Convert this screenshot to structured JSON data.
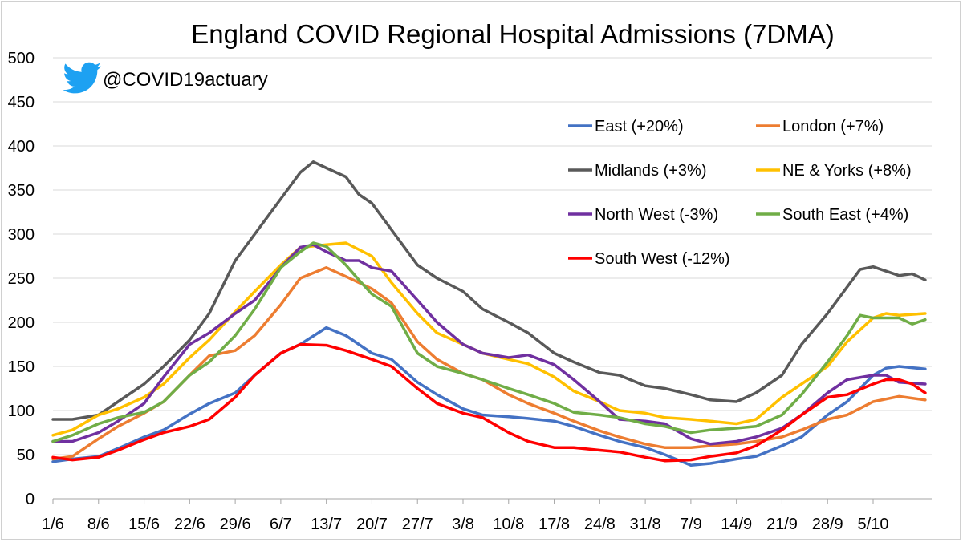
{
  "chart_data": {
    "type": "line",
    "title": "England COVID Regional Hospital Admissions (7DMA)",
    "handle": "@COVID19actuary",
    "xlabel": "",
    "ylabel": "",
    "ylim": [
      0,
      500
    ],
    "yticks": [
      0,
      50,
      100,
      150,
      200,
      250,
      300,
      350,
      400,
      450,
      500
    ],
    "grid": true,
    "legend_position": "top-right",
    "x_range": [
      0,
      135
    ],
    "x_tick_labels": [
      {
        "label": "1/6",
        "day": 0
      },
      {
        "label": "8/6",
        "day": 7
      },
      {
        "label": "15/6",
        "day": 14
      },
      {
        "label": "22/6",
        "day": 21
      },
      {
        "label": "29/6",
        "day": 28
      },
      {
        "label": "6/7",
        "day": 35
      },
      {
        "label": "13/7",
        "day": 42
      },
      {
        "label": "20/7",
        "day": 49
      },
      {
        "label": "27/7",
        "day": 56
      },
      {
        "label": "3/8",
        "day": 63
      },
      {
        "label": "10/8",
        "day": 70
      },
      {
        "label": "17/8",
        "day": 77
      },
      {
        "label": "24/8",
        "day": 84
      },
      {
        "label": "31/8",
        "day": 91
      },
      {
        "label": "7/9",
        "day": 98
      },
      {
        "label": "14/9",
        "day": 105
      },
      {
        "label": "21/9",
        "day": 112
      },
      {
        "label": "28/9",
        "day": 119
      },
      {
        "label": "5/10",
        "day": 126
      }
    ],
    "series": [
      {
        "name": "East (+20%)",
        "color": "#4472C4",
        "x": [
          0,
          3,
          7,
          10,
          14,
          17,
          21,
          24,
          28,
          31,
          35,
          38,
          42,
          45,
          49,
          52,
          56,
          59,
          63,
          66,
          70,
          73,
          77,
          80,
          84,
          87,
          91,
          94,
          98,
          101,
          105,
          108,
          112,
          115,
          119,
          122,
          126,
          128,
          130,
          134
        ],
        "y": [
          42,
          45,
          48,
          57,
          70,
          78,
          96,
          108,
          120,
          140,
          165,
          175,
          194,
          185,
          165,
          158,
          132,
          118,
          102,
          95,
          93,
          91,
          88,
          82,
          72,
          65,
          58,
          50,
          38,
          40,
          45,
          48,
          60,
          70,
          95,
          110,
          140,
          148,
          150,
          147
        ]
      },
      {
        "name": "London (+7%)",
        "color": "#ED7D31",
        "x": [
          0,
          3,
          7,
          10,
          14,
          17,
          21,
          24,
          28,
          31,
          35,
          38,
          42,
          45,
          49,
          52,
          56,
          59,
          63,
          66,
          70,
          73,
          77,
          80,
          84,
          87,
          91,
          94,
          98,
          101,
          105,
          108,
          112,
          115,
          119,
          122,
          126,
          128,
          130,
          134
        ],
        "y": [
          45,
          48,
          68,
          82,
          97,
          110,
          140,
          162,
          168,
          185,
          220,
          250,
          262,
          252,
          238,
          222,
          178,
          158,
          142,
          135,
          118,
          108,
          97,
          88,
          77,
          70,
          62,
          58,
          58,
          60,
          62,
          65,
          70,
          78,
          90,
          95,
          110,
          113,
          116,
          112
        ]
      },
      {
        "name": "Midlands (+3%)",
        "color": "#595959",
        "x": [
          0,
          3,
          7,
          10,
          14,
          17,
          21,
          24,
          28,
          31,
          35,
          38,
          40,
          42,
          45,
          47,
          49,
          52,
          56,
          59,
          63,
          66,
          70,
          73,
          77,
          80,
          84,
          87,
          91,
          94,
          98,
          101,
          105,
          108,
          112,
          115,
          119,
          122,
          124,
          126,
          128,
          130,
          132,
          134
        ],
        "y": [
          90,
          90,
          95,
          110,
          130,
          150,
          180,
          210,
          270,
          300,
          340,
          370,
          382,
          375,
          365,
          345,
          335,
          305,
          265,
          250,
          235,
          215,
          200,
          188,
          165,
          155,
          143,
          140,
          128,
          125,
          118,
          112,
          110,
          120,
          140,
          175,
          210,
          240,
          260,
          263,
          258,
          253,
          255,
          248
        ]
      },
      {
        "name": "NE & Yorks (+8%)",
        "color": "#FFC000",
        "x": [
          0,
          3,
          7,
          10,
          14,
          17,
          21,
          24,
          28,
          31,
          35,
          38,
          42,
          45,
          49,
          52,
          56,
          59,
          63,
          66,
          70,
          73,
          77,
          80,
          84,
          87,
          91,
          94,
          98,
          101,
          105,
          108,
          112,
          115,
          119,
          122,
          126,
          128,
          130,
          134
        ],
        "y": [
          72,
          78,
          95,
          102,
          115,
          130,
          160,
          180,
          212,
          235,
          265,
          285,
          288,
          290,
          275,
          245,
          210,
          188,
          175,
          165,
          158,
          153,
          138,
          122,
          110,
          100,
          97,
          92,
          90,
          88,
          85,
          90,
          115,
          130,
          150,
          178,
          205,
          210,
          208,
          210
        ]
      },
      {
        "name": "North West (-3%)",
        "color": "#7030A0",
        "x": [
          0,
          3,
          7,
          10,
          14,
          17,
          21,
          24,
          28,
          31,
          35,
          38,
          40,
          42,
          45,
          47,
          49,
          52,
          56,
          59,
          63,
          66,
          70,
          73,
          77,
          80,
          84,
          87,
          91,
          94,
          98,
          101,
          105,
          108,
          112,
          115,
          119,
          122,
          126,
          128,
          130,
          134
        ],
        "y": [
          65,
          65,
          75,
          88,
          108,
          138,
          175,
          188,
          210,
          225,
          262,
          285,
          288,
          280,
          270,
          270,
          262,
          258,
          225,
          200,
          175,
          165,
          160,
          163,
          152,
          135,
          110,
          90,
          88,
          85,
          68,
          62,
          65,
          70,
          80,
          95,
          120,
          135,
          140,
          140,
          132,
          130
        ]
      },
      {
        "name": "South East (+4%)",
        "color": "#70AD47",
        "x": [
          0,
          3,
          7,
          10,
          14,
          17,
          21,
          24,
          28,
          31,
          35,
          38,
          40,
          42,
          45,
          47,
          49,
          52,
          56,
          59,
          63,
          66,
          70,
          73,
          77,
          80,
          84,
          87,
          91,
          94,
          98,
          101,
          105,
          108,
          112,
          115,
          119,
          122,
          124,
          126,
          128,
          130,
          132,
          134
        ],
        "y": [
          65,
          72,
          85,
          92,
          98,
          110,
          140,
          155,
          185,
          215,
          262,
          280,
          290,
          286,
          265,
          248,
          232,
          218,
          165,
          150,
          142,
          135,
          125,
          118,
          108,
          98,
          95,
          92,
          85,
          82,
          75,
          78,
          80,
          82,
          95,
          118,
          155,
          185,
          208,
          205,
          205,
          205,
          198,
          203
        ]
      },
      {
        "name": "South West (-12%)",
        "color": "#FF0000",
        "x": [
          0,
          3,
          7,
          10,
          14,
          17,
          21,
          24,
          28,
          31,
          35,
          38,
          42,
          45,
          49,
          52,
          56,
          59,
          63,
          66,
          70,
          73,
          77,
          80,
          84,
          87,
          91,
          94,
          98,
          101,
          105,
          108,
          112,
          115,
          119,
          122,
          126,
          128,
          130,
          132,
          134
        ],
        "y": [
          47,
          44,
          47,
          55,
          67,
          75,
          82,
          90,
          115,
          140,
          165,
          175,
          174,
          168,
          158,
          150,
          125,
          108,
          97,
          92,
          75,
          65,
          58,
          58,
          55,
          53,
          47,
          43,
          44,
          48,
          52,
          60,
          78,
          95,
          115,
          118,
          130,
          135,
          135,
          130,
          120
        ]
      }
    ]
  }
}
